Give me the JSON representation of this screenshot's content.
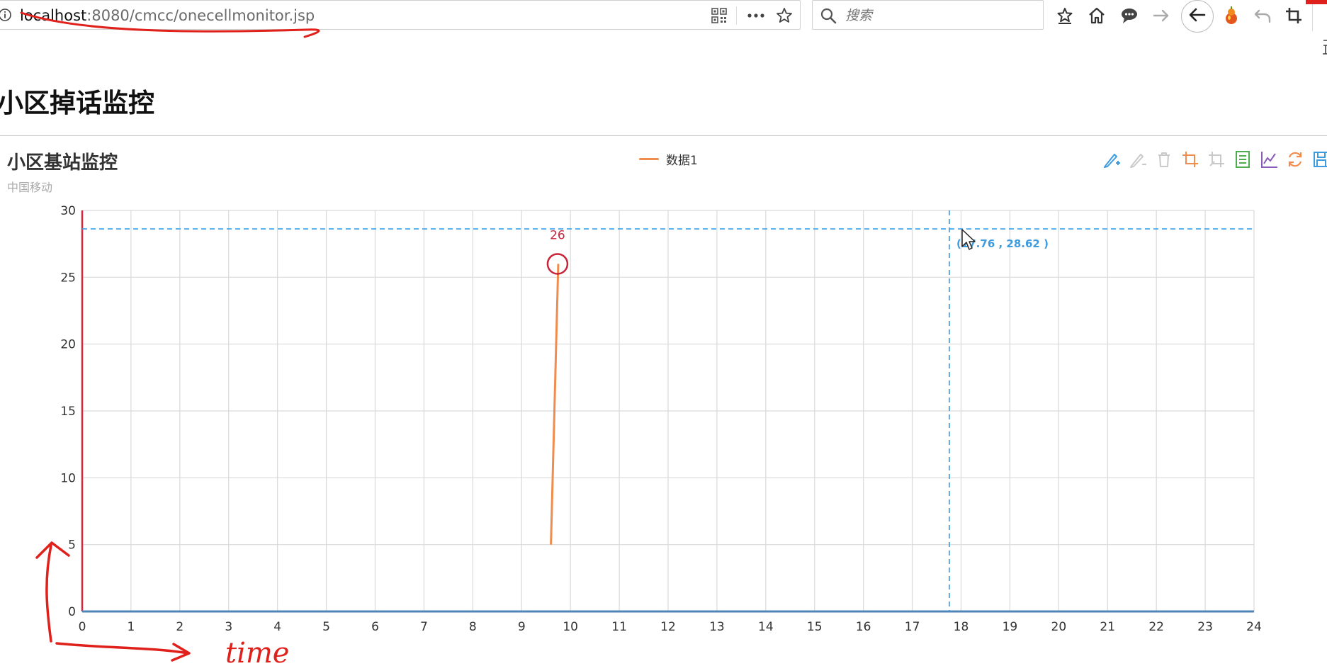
{
  "browser": {
    "url_host": "localhost",
    "url_rest": ":8080/cmcc/onecellmonitor.jsp",
    "search_placeholder": "搜索"
  },
  "page": {
    "title": "小区掉话监控"
  },
  "colors": {
    "series": "#ef8d4f",
    "grid": "#d9d9d9",
    "crosshair": "#3d9be0",
    "axis_x": "#4f86b8",
    "axis_y": "#d7263d",
    "annotation": "#c8243a",
    "accent_red": "#e0201b"
  },
  "toolbox": [
    "mark-icon",
    "mark-undo-icon",
    "mark-clear-icon",
    "data-zoom-icon",
    "data-zoom-reset-icon",
    "data-view-icon",
    "line-chart-icon",
    "restore-icon",
    "save-image-icon"
  ],
  "crosshair_readout": "(17.76 , 28.62 )",
  "chart_data": {
    "type": "line",
    "title": "小区基站监控",
    "subtitle": "中国移动",
    "legend": [
      "数据1"
    ],
    "legend_position": "top-center",
    "xlim": [
      0,
      24
    ],
    "ylim": [
      0,
      30
    ],
    "x_ticks": [
      0,
      1,
      2,
      3,
      4,
      5,
      6,
      7,
      8,
      9,
      10,
      11,
      12,
      13,
      14,
      15,
      16,
      17,
      18,
      19,
      20,
      21,
      22,
      23,
      24
    ],
    "y_ticks": [
      0,
      5,
      10,
      15,
      20,
      25,
      30
    ],
    "grid": true,
    "series": [
      {
        "name": "数据1",
        "x": [
          9.6,
          9.75
        ],
        "y": [
          5,
          26
        ]
      }
    ],
    "point_label": {
      "x": 9.75,
      "y": 26,
      "text": "26"
    },
    "crosshair": {
      "x": 17.76,
      "y": 28.62
    }
  },
  "annotations": {
    "handwritten_note": "time"
  }
}
